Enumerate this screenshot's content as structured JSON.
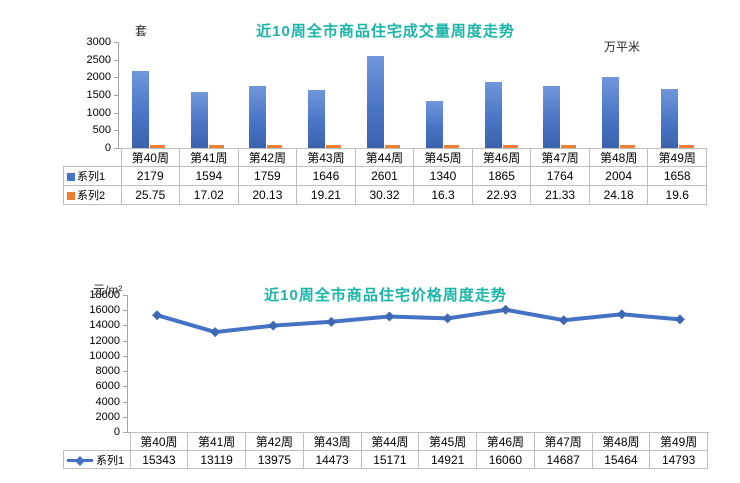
{
  "page": {
    "background": "#ffffff"
  },
  "chart_data": [
    {
      "type": "bar",
      "title": "近10周全市商品住宅成交量周度走势",
      "title_color": "#1cb5a7",
      "unit_left": "套",
      "unit_right": "万平米",
      "categories": [
        "第40周",
        "第41周",
        "第42周",
        "第43周",
        "第44周",
        "第45周",
        "第46周",
        "第47周",
        "第48周",
        "第49周"
      ],
      "series": [
        {
          "name": "系列1",
          "color": "#4472C4",
          "values": [
            2179,
            1594,
            1759,
            1646,
            2601,
            1340,
            1865,
            1764,
            2004,
            1658
          ]
        },
        {
          "name": "系列2",
          "color": "#ED7D31",
          "values": [
            25.75,
            17.02,
            20.13,
            19.21,
            30.32,
            16.3,
            22.93,
            21.33,
            24.18,
            19.6
          ]
        }
      ],
      "ylim": [
        0,
        3000
      ],
      "yticks": [
        0,
        500,
        1000,
        1500,
        2000,
        2500,
        3000
      ],
      "grid": false,
      "legend_position": "table-left"
    },
    {
      "type": "line",
      "title": "近10周全市商品住宅价格周度走势",
      "title_color": "#1cb5a7",
      "unit_left": "元/m²",
      "categories": [
        "第40周",
        "第41周",
        "第42周",
        "第43周",
        "第44周",
        "第45周",
        "第46周",
        "第47周",
        "第48周",
        "第49周"
      ],
      "series": [
        {
          "name": "系列1",
          "color": "#4472C4",
          "marker": "diamond",
          "values": [
            15343,
            13119,
            13975,
            14473,
            15171,
            14921,
            16060,
            14687,
            15464,
            14793
          ]
        }
      ],
      "ylim": [
        0,
        18000
      ],
      "yticks": [
        0,
        2000,
        4000,
        6000,
        8000,
        10000,
        12000,
        14000,
        16000,
        18000
      ],
      "grid": false,
      "legend_position": "table-left"
    }
  ]
}
